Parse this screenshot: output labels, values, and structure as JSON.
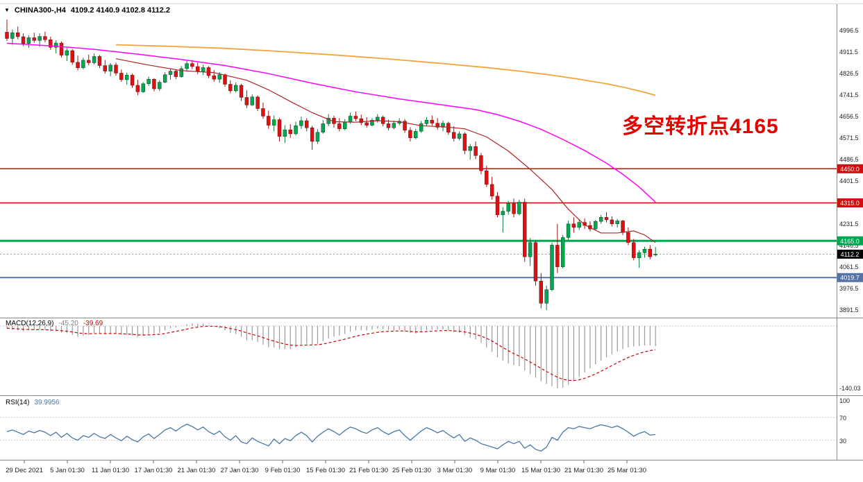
{
  "symbol_bar": {
    "marker": "▼",
    "title": "CHINA300-,H4",
    "ohlc": "4109.2 4140.9 4102.8 4112.2"
  },
  "annotation": {
    "text": "多空转折点4165",
    "color": "#e60000"
  },
  "indicators": {
    "macd": {
      "name": "MACD(12,26,9)",
      "value_main": "-45.20",
      "value_signal": "-39.69",
      "axis_min_label": "-140.03"
    },
    "rsi": {
      "name": "RSI(14)",
      "value": "39.9956",
      "axis_labels": [
        "100",
        "70",
        "30"
      ]
    }
  },
  "levels": [
    {
      "label": "4450.0",
      "price": 4450.0,
      "color": "#cc1111",
      "width": 1.6
    },
    {
      "label": "4315.0",
      "price": 4315.0,
      "color": "#cc1111",
      "width": 1.6
    },
    {
      "label": "4165.0",
      "price": 4165.0,
      "color": "#00a651",
      "width": 3
    },
    {
      "label": "4019.7",
      "price": 4019.7,
      "color": "#5572a7",
      "width": 2
    }
  ],
  "current_price": {
    "label": "4112.2",
    "value": 4112.2,
    "tag_bg": "#000000",
    "line_color": "#999999"
  },
  "chart_data": {
    "type": "candlestick",
    "symbol": "CHINA300-",
    "timeframe": "H4",
    "ylim": [
      3850,
      5060
    ],
    "grid": false,
    "up_color": "#00a94f",
    "down_color": "#e11010",
    "y_ticks": [
      4996.5,
      4911.5,
      4826.5,
      4741.5,
      4656.5,
      4571.5,
      4486.5,
      4401.5,
      4316.5,
      4231.5,
      4146.5,
      4061.5,
      3976.5,
      3891.5
    ],
    "x_ticks": [
      "29 Dec 2021",
      "5 Jan 01:30",
      "11 Jan 01:30",
      "17 Jan 01:30",
      "21 Jan 01:30",
      "27 Jan 01:30",
      "9 Feb 01:30",
      "15 Feb 01:30",
      "21 Feb 01:30",
      "25 Feb 01:30",
      "3 Mar 01:30",
      "9 Mar 01:30",
      "15 Mar 01:30",
      "21 Mar 01:30",
      "25 Mar 01:30"
    ],
    "candles": [
      [
        4990,
        5040,
        4955,
        4965
      ],
      [
        4965,
        5000,
        4940,
        4988
      ],
      [
        4988,
        5012,
        4962,
        4972
      ],
      [
        4972,
        4985,
        4935,
        4945
      ],
      [
        4945,
        4978,
        4928,
        4968
      ],
      [
        4968,
        4988,
        4948,
        4957
      ],
      [
        4957,
        4985,
        4932,
        4973
      ],
      [
        4973,
        4992,
        4950,
        4960
      ],
      [
        4960,
        4972,
        4920,
        4930
      ],
      [
        4930,
        4958,
        4906,
        4947
      ],
      [
        4947,
        4953,
        4890,
        4899
      ],
      [
        4899,
        4927,
        4876,
        4917
      ],
      [
        4917,
        4923,
        4861,
        4871
      ],
      [
        4871,
        4897,
        4839,
        4849
      ],
      [
        4849,
        4889,
        4843,
        4879
      ],
      [
        4879,
        4901,
        4859,
        4869
      ],
      [
        4869,
        4906,
        4862,
        4894
      ],
      [
        4894,
        4900,
        4848,
        4858
      ],
      [
        4858,
        4880,
        4826,
        4836
      ],
      [
        4836,
        4868,
        4816,
        4860
      ],
      [
        4860,
        4870,
        4818,
        4828
      ],
      [
        4828,
        4842,
        4794,
        4802
      ],
      [
        4802,
        4830,
        4782,
        4820
      ],
      [
        4820,
        4826,
        4770,
        4780
      ],
      [
        4780,
        4802,
        4741,
        4754
      ],
      [
        4754,
        4792,
        4750,
        4786
      ],
      [
        4786,
        4814,
        4778,
        4804
      ],
      [
        4804,
        4808,
        4756,
        4766
      ],
      [
        4766,
        4800,
        4758,
        4792
      ],
      [
        4792,
        4832,
        4788,
        4822
      ],
      [
        4822,
        4846,
        4802,
        4836
      ],
      [
        4836,
        4842,
        4804,
        4814
      ],
      [
        4814,
        4856,
        4810,
        4846
      ],
      [
        4846,
        4876,
        4836,
        4866
      ],
      [
        4866,
        4880,
        4844,
        4854
      ],
      [
        4854,
        4870,
        4824,
        4834
      ],
      [
        4834,
        4862,
        4820,
        4850
      ],
      [
        4850,
        4856,
        4808,
        4818
      ],
      [
        4818,
        4840,
        4794,
        4804
      ],
      [
        4804,
        4832,
        4790,
        4822
      ],
      [
        4822,
        4826,
        4774,
        4784
      ],
      [
        4784,
        4800,
        4748,
        4758
      ],
      [
        4758,
        4792,
        4752,
        4780
      ],
      [
        4780,
        4786,
        4718,
        4732
      ],
      [
        4732,
        4760,
        4690,
        4702
      ],
      [
        4702,
        4744,
        4698,
        4734
      ],
      [
        4734,
        4740,
        4678,
        4688
      ],
      [
        4688,
        4712,
        4648,
        4658
      ],
      [
        4658,
        4680,
        4608,
        4622
      ],
      [
        4622,
        4660,
        4598,
        4644
      ],
      [
        4644,
        4650,
        4558,
        4578
      ],
      [
        4578,
        4622,
        4552,
        4604
      ],
      [
        4604,
        4626,
        4572,
        4588
      ],
      [
        4588,
        4636,
        4582,
        4620
      ],
      [
        4620,
        4656,
        4608,
        4640
      ],
      [
        4640,
        4650,
        4598,
        4612
      ],
      [
        4612,
        4620,
        4525,
        4558
      ],
      [
        4558,
        4606,
        4548,
        4594
      ],
      [
        4594,
        4642,
        4588,
        4628
      ],
      [
        4628,
        4666,
        4618,
        4650
      ],
      [
        4650,
        4660,
        4612,
        4628
      ],
      [
        4628,
        4650,
        4598,
        4608
      ],
      [
        4608,
        4646,
        4602,
        4634
      ],
      [
        4634,
        4672,
        4628,
        4658
      ],
      [
        4658,
        4676,
        4638,
        4648
      ],
      [
        4648,
        4664,
        4622,
        4632
      ],
      [
        4632,
        4654,
        4612,
        4622
      ],
      [
        4622,
        4650,
        4618,
        4642
      ],
      [
        4642,
        4666,
        4632,
        4654
      ],
      [
        4654,
        4660,
        4618,
        4628
      ],
      [
        4628,
        4644,
        4602,
        4612
      ],
      [
        4612,
        4640,
        4606,
        4630
      ],
      [
        4630,
        4650,
        4622,
        4638
      ],
      [
        4638,
        4646,
        4592,
        4602
      ],
      [
        4602,
        4614,
        4558,
        4572
      ],
      [
        4572,
        4608,
        4566,
        4598
      ],
      [
        4598,
        4638,
        4592,
        4628
      ],
      [
        4628,
        4654,
        4618,
        4642
      ],
      [
        4642,
        4660,
        4620,
        4630
      ],
      [
        4630,
        4650,
        4604,
        4614
      ],
      [
        4614,
        4640,
        4598,
        4630
      ],
      [
        4630,
        4636,
        4584,
        4594
      ],
      [
        4594,
        4618,
        4558,
        4570
      ],
      [
        4570,
        4598,
        4562,
        4588
      ],
      [
        4588,
        4594,
        4508,
        4522
      ],
      [
        4522,
        4548,
        4486,
        4538
      ],
      [
        4538,
        4558,
        4488,
        4502
      ],
      [
        4502,
        4512,
        4428,
        4442
      ],
      [
        4442,
        4462,
        4378,
        4388
      ],
      [
        4388,
        4418,
        4328,
        4342
      ],
      [
        4342,
        4358,
        4258,
        4268
      ],
      [
        4268,
        4298,
        4198,
        4282
      ],
      [
        4282,
        4322,
        4268,
        4312
      ],
      [
        4312,
        4332,
        4258,
        4272
      ],
      [
        4272,
        4328,
        4266,
        4318
      ],
      [
        4318,
        4332,
        4082,
        4102
      ],
      [
        4102,
        4176,
        4066,
        4158
      ],
      [
        4158,
        4166,
        3988,
        4006
      ],
      [
        4006,
        4038,
        3898,
        3918
      ],
      [
        3918,
        3988,
        3891,
        3972
      ],
      [
        3972,
        4158,
        3966,
        4148
      ],
      [
        4148,
        4232,
        4038,
        4062
      ],
      [
        4062,
        4188,
        4056,
        4178
      ],
      [
        4178,
        4244,
        4168,
        4232
      ],
      [
        4232,
        4258,
        4198,
        4218
      ],
      [
        4218,
        4250,
        4208,
        4238
      ],
      [
        4238,
        4254,
        4212,
        4226
      ],
      [
        4226,
        4242,
        4202,
        4212
      ],
      [
        4212,
        4248,
        4206,
        4242
      ],
      [
        4242,
        4268,
        4232,
        4258
      ],
      [
        4258,
        4278,
        4238,
        4248
      ],
      [
        4248,
        4262,
        4222,
        4232
      ],
      [
        4232,
        4252,
        4218,
        4244
      ],
      [
        4244,
        4248,
        4188,
        4198
      ],
      [
        4198,
        4218,
        4148,
        4158
      ],
      [
        4158,
        4172,
        4088,
        4098
      ],
      [
        4098,
        4128,
        4058,
        4118
      ],
      [
        4118,
        4142,
        4098,
        4132
      ],
      [
        4132,
        4148,
        4092,
        4102
      ],
      [
        4109.2,
        4140.9,
        4102.8,
        4112.2
      ]
    ],
    "overlays": [
      {
        "name": "ma-fast-red",
        "color": "#b22222",
        "width": 1.2,
        "points": [
          [
            20,
            4885
          ],
          [
            26,
            4860
          ],
          [
            32,
            4838
          ],
          [
            38,
            4830
          ],
          [
            44,
            4800
          ],
          [
            48,
            4762
          ],
          [
            52,
            4716
          ],
          [
            56,
            4672
          ],
          [
            60,
            4636
          ],
          [
            64,
            4634
          ],
          [
            68,
            4640
          ],
          [
            72,
            4636
          ],
          [
            76,
            4620
          ],
          [
            80,
            4616
          ],
          [
            84,
            4608
          ],
          [
            88,
            4576
          ],
          [
            92,
            4520
          ],
          [
            96,
            4448
          ],
          [
            100,
            4368
          ],
          [
            103,
            4290
          ],
          [
            106,
            4228
          ],
          [
            109,
            4196
          ],
          [
            112,
            4196
          ],
          [
            115,
            4204
          ],
          [
            117,
            4188
          ],
          [
            119,
            4158
          ]
        ]
      },
      {
        "name": "ma-mid-magenta",
        "color": "#ff00ff",
        "width": 1.5,
        "points": [
          [
            0,
            4946
          ],
          [
            8,
            4936
          ],
          [
            16,
            4922
          ],
          [
            24,
            4903
          ],
          [
            32,
            4882
          ],
          [
            40,
            4858
          ],
          [
            48,
            4826
          ],
          [
            56,
            4788
          ],
          [
            64,
            4754
          ],
          [
            72,
            4726
          ],
          [
            80,
            4702
          ],
          [
            86,
            4684
          ],
          [
            90,
            4664
          ],
          [
            94,
            4638
          ],
          [
            98,
            4606
          ],
          [
            102,
            4566
          ],
          [
            106,
            4522
          ],
          [
            110,
            4472
          ],
          [
            113,
            4428
          ],
          [
            116,
            4378
          ],
          [
            119,
            4318
          ]
        ]
      },
      {
        "name": "ma-slow-orange",
        "color": "#f5a33a",
        "width": 1.8,
        "points": [
          [
            20,
            4940
          ],
          [
            30,
            4934
          ],
          [
            40,
            4926
          ],
          [
            50,
            4914
          ],
          [
            60,
            4900
          ],
          [
            70,
            4884
          ],
          [
            80,
            4866
          ],
          [
            88,
            4850
          ],
          [
            94,
            4836
          ],
          [
            100,
            4820
          ],
          [
            105,
            4804
          ],
          [
            110,
            4786
          ],
          [
            114,
            4768
          ],
          [
            117,
            4752
          ],
          [
            119,
            4740
          ]
        ]
      }
    ],
    "macd": {
      "params": "12,26,9",
      "hist_color": "#9a9a9a",
      "signal_color": "#d00000",
      "axis_min": -140.03,
      "histogram": [
        -5,
        -8,
        -10,
        -12,
        -10,
        -9,
        -8,
        -9,
        -12,
        -12,
        -15,
        -16,
        -20,
        -24,
        -22,
        -20,
        -16,
        -16,
        -18,
        -16,
        -17,
        -20,
        -20,
        -22,
        -25,
        -22,
        -18,
        -18,
        -15,
        -10,
        -5,
        -3,
        0,
        4,
        6,
        5,
        5,
        2,
        -2,
        -5,
        -10,
        -16,
        -18,
        -24,
        -32,
        -32,
        -36,
        -42,
        -48,
        -48,
        -52,
        -52,
        -52,
        -48,
        -42,
        -40,
        -42,
        -40,
        -34,
        -28,
        -24,
        -22,
        -18,
        -13,
        -10,
        -10,
        -10,
        -8,
        -6,
        -7,
        -9,
        -10,
        -9,
        -12,
        -16,
        -17,
        -14,
        -10,
        -8,
        -8,
        -8,
        -10,
        -14,
        -15,
        -20,
        -26,
        -30,
        -38,
        -48,
        -58,
        -70,
        -78,
        -84,
        -88,
        -90,
        -100,
        -108,
        -116,
        -124,
        -130,
        -135,
        -140.03,
        -138,
        -132,
        -124,
        -114,
        -104,
        -95,
        -86,
        -78,
        -70,
        -63,
        -57,
        -52,
        -48,
        -46,
        -45,
        -44,
        -44,
        -45.2
      ]
    },
    "rsi": {
      "period": 14,
      "color": "#4a76a8",
      "scale_max": 100,
      "levels": [
        70,
        30
      ],
      "values": [
        45,
        48,
        44,
        40,
        46,
        43,
        47,
        44,
        38,
        44,
        35,
        42,
        34,
        30,
        38,
        35,
        42,
        36,
        33,
        40,
        34,
        29,
        37,
        31,
        27,
        36,
        41,
        33,
        40,
        48,
        52,
        46,
        53,
        58,
        54,
        48,
        53,
        45,
        40,
        46,
        36,
        30,
        38,
        27,
        24,
        34,
        28,
        24,
        20,
        32,
        24,
        33,
        29,
        38,
        44,
        38,
        27,
        37,
        44,
        50,
        45,
        39,
        47,
        53,
        50,
        45,
        42,
        48,
        52,
        45,
        40,
        45,
        48,
        38,
        30,
        38,
        46,
        52,
        48,
        43,
        47,
        40,
        34,
        40,
        28,
        34,
        30,
        24,
        21,
        18,
        15,
        22,
        28,
        24,
        28,
        16,
        22,
        14,
        11,
        18,
        35,
        30,
        44,
        52,
        50,
        54,
        52,
        50,
        54,
        57,
        55,
        52,
        55,
        50,
        44,
        37,
        42,
        45,
        39,
        40
      ]
    }
  }
}
